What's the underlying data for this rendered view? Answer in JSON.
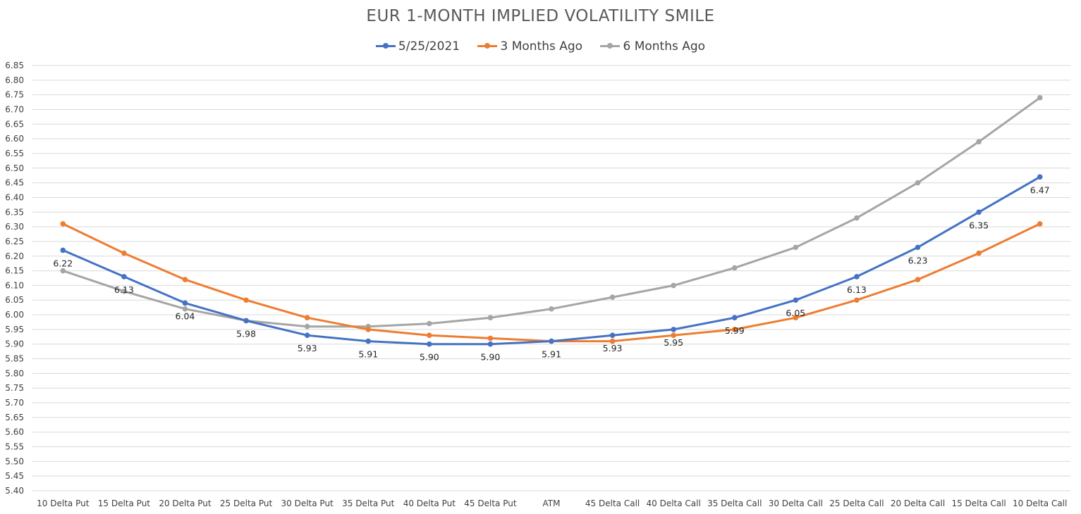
{
  "chart_data": {
    "type": "line",
    "title": "EUR 1-MONTH IMPLIED VOLATILITY SMILE",
    "categories": [
      "10 Delta Put",
      "15 Delta Put",
      "20 Delta Put",
      "25 Delta Put",
      "30 Delta Put",
      "35 Delta Put",
      "40 Delta Put",
      "45 Delta Put",
      "ATM",
      "45 Delta Call",
      "40 Delta Call",
      "35 Delta Call",
      "30 Delta Call",
      "25 Delta Call",
      "20 Delta Call",
      "15 Delta Call",
      "10 Delta Call"
    ],
    "ylim": [
      5.4,
      6.85
    ],
    "ytick_step": 0.05,
    "grid": true,
    "legend_position": "top",
    "series": [
      {
        "name": "5/25/2021",
        "color": "#4472C4",
        "values": [
          6.22,
          6.13,
          6.04,
          5.98,
          5.93,
          5.91,
          5.9,
          5.9,
          5.91,
          5.93,
          5.95,
          5.99,
          6.05,
          6.13,
          6.23,
          6.35,
          6.47
        ],
        "data_labels": [
          "6.22",
          "6.13",
          "6.04",
          "5.98",
          "5.93",
          "5.91",
          "5.90",
          "5.90",
          "5.91",
          "5.93",
          "5.95",
          "5.99",
          "6.05",
          "6.13",
          "6.23",
          "6.35",
          "6.47"
        ]
      },
      {
        "name": "3 Months Ago",
        "color": "#ED7D31",
        "values": [
          6.31,
          6.21,
          6.12,
          6.05,
          5.99,
          5.95,
          5.93,
          5.92,
          5.91,
          5.91,
          5.93,
          5.95,
          5.99,
          6.05,
          6.12,
          6.21,
          6.31
        ]
      },
      {
        "name": "6 Months Ago",
        "color": "#A5A5A5",
        "values": [
          6.15,
          6.08,
          6.02,
          5.98,
          5.96,
          5.96,
          5.97,
          5.99,
          6.02,
          6.06,
          6.1,
          6.16,
          6.23,
          6.33,
          6.45,
          6.59,
          6.74
        ]
      }
    ]
  }
}
